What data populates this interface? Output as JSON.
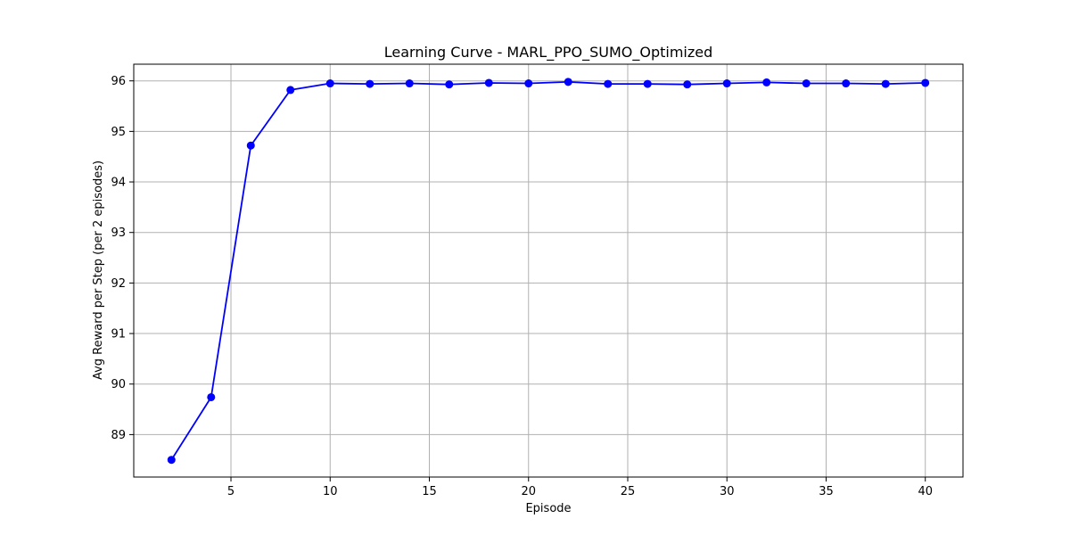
{
  "chart_data": {
    "type": "line",
    "title": "Learning Curve - MARL_PPO_SUMO_Optimized",
    "xlabel": "Episode",
    "ylabel": "Avg Reward per Step (per 2 episodes)",
    "x": [
      2,
      4,
      6,
      8,
      10,
      12,
      14,
      16,
      18,
      20,
      22,
      24,
      26,
      28,
      30,
      32,
      34,
      36,
      38,
      40
    ],
    "series": [
      {
        "values": [
          88.5,
          89.74,
          94.72,
          95.82,
          95.95,
          95.94,
          95.95,
          95.93,
          95.96,
          95.95,
          95.98,
          95.94,
          95.94,
          95.93,
          95.95,
          95.97,
          95.95,
          95.95,
          95.94,
          95.96
        ],
        "color": "#0000ff",
        "marker": "circle"
      }
    ],
    "xlim": [
      0.1,
      41.9
    ],
    "ylim": [
      88.16,
      96.33
    ],
    "xticks": [
      5,
      10,
      15,
      20,
      25,
      30,
      35,
      40
    ],
    "yticks": [
      89,
      90,
      91,
      92,
      93,
      94,
      95,
      96
    ],
    "grid": true,
    "legend": "none"
  }
}
